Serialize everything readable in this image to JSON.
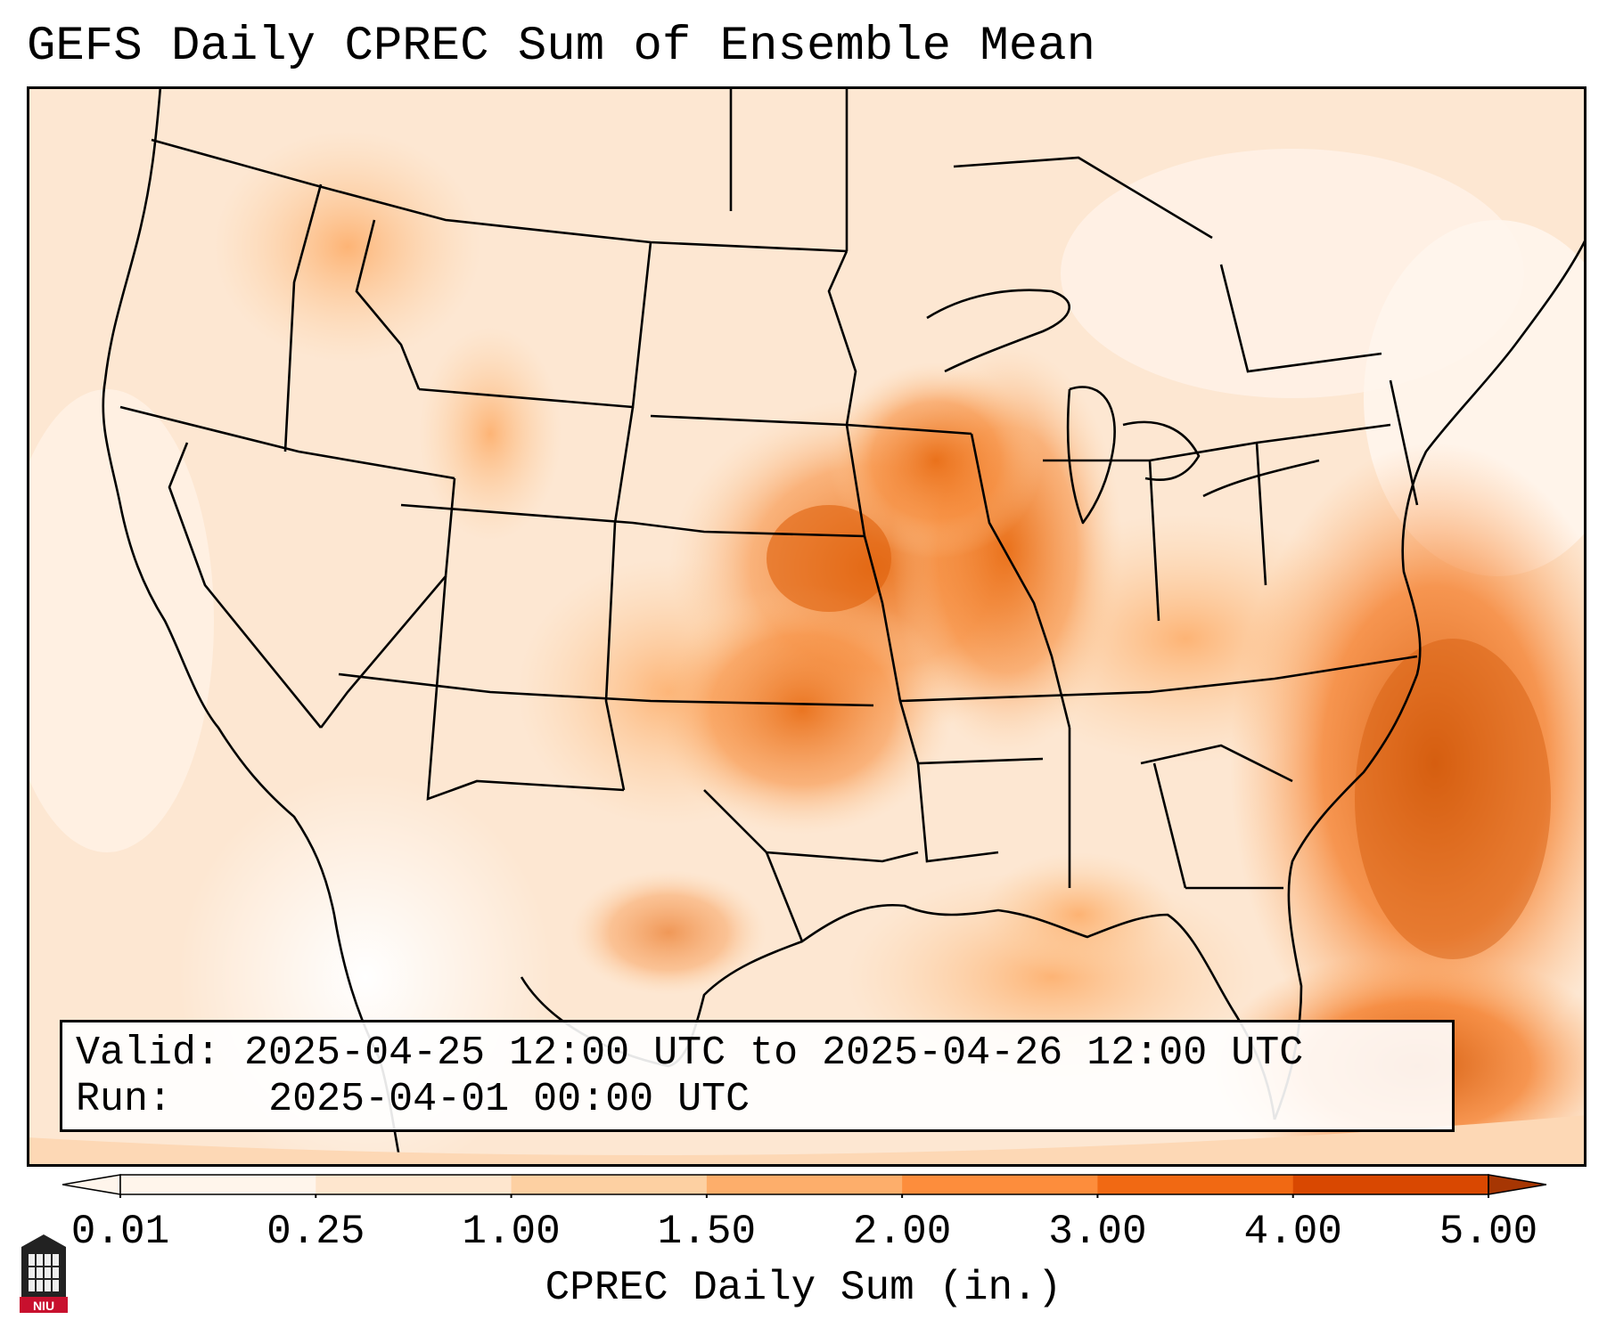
{
  "title": "GEFS Daily CPREC Sum of Ensemble Mean",
  "info": {
    "valid_label": "Valid:",
    "valid_value": "2025-04-25 12:00 UTC to 2025-04-26 12:00 UTC",
    "run_label": "Run:",
    "run_value": "2025-04-01 00:00 UTC"
  },
  "colorbar": {
    "label": "CPREC Daily Sum (in.)",
    "ticks": [
      "0.01",
      "0.25",
      "1.00",
      "1.50",
      "2.00",
      "3.00",
      "4.00",
      "5.00"
    ],
    "colors": [
      "#fff5eb",
      "#fee6ce",
      "#fdd0a2",
      "#fdae6b",
      "#fd8d3c",
      "#f16913",
      "#d94801",
      "#a63603"
    ]
  },
  "logo": {
    "text": "NIU"
  }
}
